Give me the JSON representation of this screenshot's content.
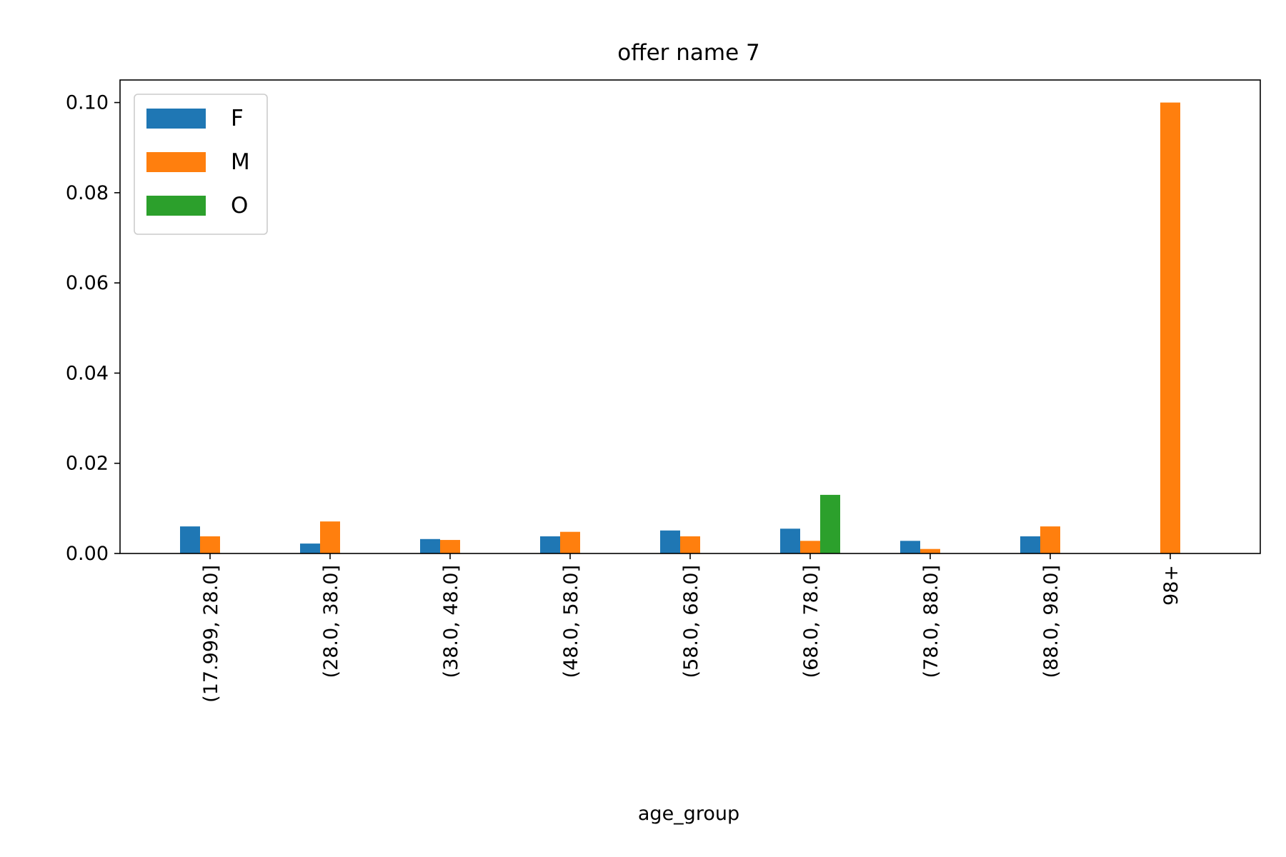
{
  "chart_data": {
    "type": "bar",
    "title": "offer name 7",
    "xlabel": "age_group",
    "ylabel": "",
    "categories": [
      "(17.999, 28.0]",
      "(28.0, 38.0]",
      "(38.0, 48.0]",
      "(48.0, 58.0]",
      "(58.0, 68.0]",
      "(68.0, 78.0]",
      "(78.0, 88.0]",
      "(88.0, 98.0]",
      "98+"
    ],
    "series": [
      {
        "name": "F",
        "color": "#1f77b4",
        "values": [
          0.006,
          0.0022,
          0.0032,
          0.0038,
          0.0051,
          0.0055,
          0.0028,
          0.0038,
          0.0
        ]
      },
      {
        "name": "M",
        "color": "#ff7f0e",
        "values": [
          0.0038,
          0.0071,
          0.003,
          0.0048,
          0.0038,
          0.0028,
          0.001,
          0.006,
          0.1
        ]
      },
      {
        "name": "O",
        "color": "#2ca02c",
        "values": [
          0.0,
          0.0,
          0.0,
          0.0,
          0.0,
          0.013,
          0.0,
          0.0,
          0.0
        ]
      }
    ],
    "ylim": [
      0,
      0.105
    ],
    "yticks": [
      "0.00",
      "0.02",
      "0.04",
      "0.06",
      "0.08",
      "0.10"
    ],
    "ytick_values": [
      0,
      0.02,
      0.04,
      0.06,
      0.08,
      0.1
    ],
    "legend_placement": "top-left",
    "grid": false
  }
}
